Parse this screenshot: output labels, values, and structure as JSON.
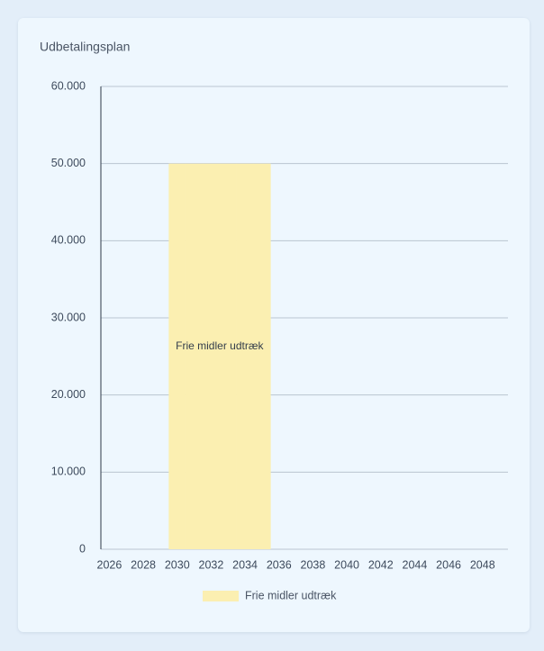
{
  "chart_data": {
    "type": "bar",
    "title": "Udbetalingsplan",
    "categories": [
      "2026",
      null,
      "2028",
      null,
      "2030",
      null,
      "2032",
      null,
      "2034",
      null,
      "2036",
      null,
      "2038",
      null,
      "2040",
      null,
      "2042",
      null,
      "2044",
      null,
      "2046",
      null,
      "2048",
      null
    ],
    "series": [
      {
        "name": "Frie midler udtræk",
        "color": "#fbefb1",
        "values": [
          null,
          null,
          null,
          null,
          50000,
          50000,
          50000,
          50000,
          50000,
          50000,
          null,
          null,
          null,
          null,
          null,
          null,
          null,
          null,
          null,
          null,
          null,
          null,
          null,
          null
        ]
      }
    ],
    "annotation": "Frie midler udtræk",
    "ylim": [
      0,
      60000
    ],
    "yticks": [
      0,
      {
        "value": 10000,
        "label": "10.000"
      },
      {
        "value": 20000,
        "label": "20.000"
      },
      {
        "value": 30000,
        "label": "30.000"
      },
      {
        "value": 40000,
        "label": "40.000"
      },
      {
        "value": 50000,
        "label": "50.000"
      },
      {
        "value": 60000,
        "label": "60.000"
      }
    ],
    "grid": true,
    "legend": "bottom"
  }
}
